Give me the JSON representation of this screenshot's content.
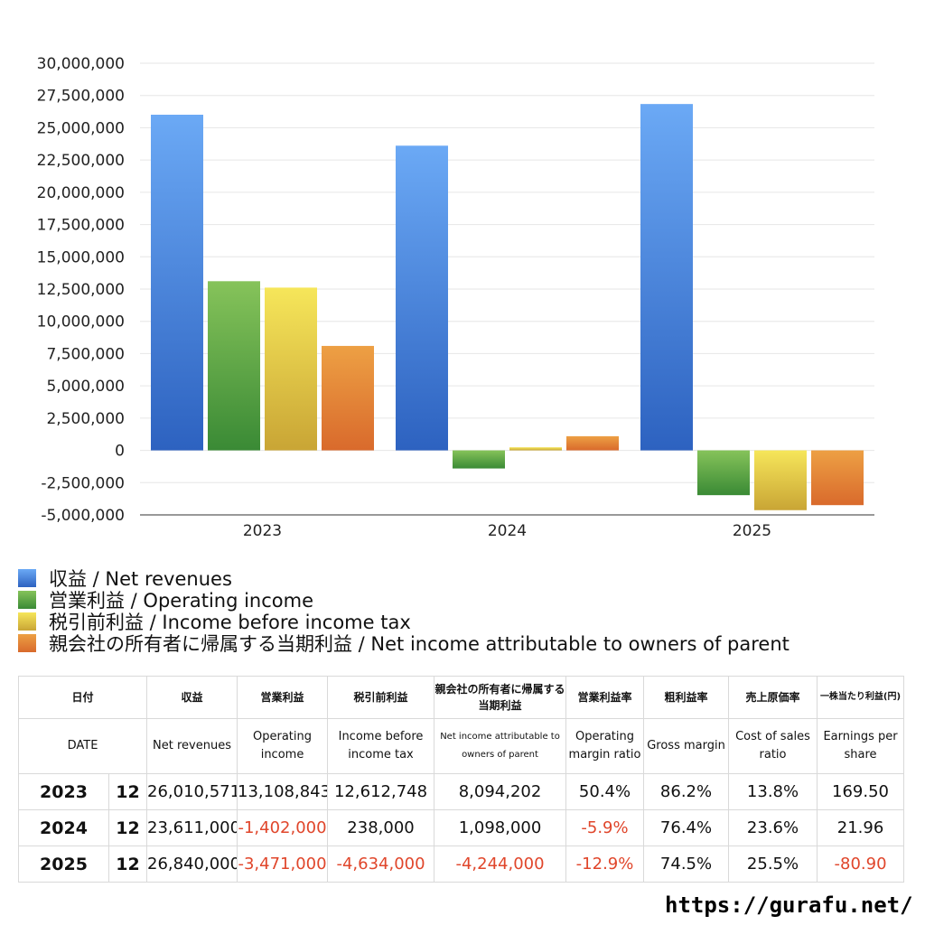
{
  "chart_data": {
    "type": "bar",
    "categories": [
      "2023",
      "2024",
      "2025"
    ],
    "ylim": [
      -5000000,
      30000000
    ],
    "y_ticks": [
      "30,000,000",
      "27,500,000",
      "25,000,000",
      "22,500,000",
      "20,000,000",
      "17,500,000",
      "15,000,000",
      "12,500,000",
      "10,000,000",
      "7,500,000",
      "5,000,000",
      "2,500,000",
      "0",
      "-2,500,000",
      "-5,000,000"
    ],
    "grid": true,
    "legend_position": "bottom-left",
    "series": [
      {
        "name": "収益 / Net revenues",
        "values": [
          26010571,
          23611000,
          26840000
        ],
        "color_top": "#6ba9f5",
        "color_bottom": "#2d62c0"
      },
      {
        "name": "営業利益 / Operating income",
        "values": [
          13108843,
          -1402000,
          -3471000
        ],
        "color_top": "#86c35a",
        "color_bottom": "#3a8a35"
      },
      {
        "name": "税引前利益 / Income before income tax",
        "values": [
          12612748,
          238000,
          -4634000
        ],
        "color_top": "#f6e65a",
        "color_bottom": "#c9a535"
      },
      {
        "name": "親会社の所有者に帰属する当期利益 / Net income attributable to owners of parent",
        "values": [
          8094202,
          1098000,
          -4244000
        ],
        "color_top": "#eda044",
        "color_bottom": "#d96a2c"
      }
    ]
  },
  "table": {
    "header_jp": [
      "日付",
      "収益",
      "営業利益",
      "税引前利益",
      "親会社の所有者に帰属する当期利益",
      "営業利益率",
      "粗利益率",
      "売上原価率",
      "一株当たり利益(円)"
    ],
    "header_en": [
      "DATE",
      "Net revenues",
      "Operating income",
      "Income before income tax",
      "Net income attributable to owners of parent",
      "Operating margin ratio",
      "Gross margin",
      "Cost of sales ratio",
      "Earnings per share"
    ],
    "rows": [
      {
        "year": "2023",
        "month": "12",
        "cells": [
          "26,010,571",
          "13,108,843",
          "12,612,748",
          "8,094,202",
          "50.4%",
          "86.2%",
          "13.8%",
          "169.50"
        ]
      },
      {
        "year": "2024",
        "month": "12",
        "cells": [
          "23,611,000",
          "-1,402,000",
          "238,000",
          "1,098,000",
          "-5.9%",
          "76.4%",
          "23.6%",
          "21.96"
        ]
      },
      {
        "year": "2025",
        "month": "12",
        "cells": [
          "26,840,000",
          "-3,471,000",
          "-4,634,000",
          "-4,244,000",
          "-12.9%",
          "74.5%",
          "25.5%",
          "-80.90"
        ]
      }
    ]
  },
  "footer": {
    "url": "https://gurafu.net/"
  }
}
